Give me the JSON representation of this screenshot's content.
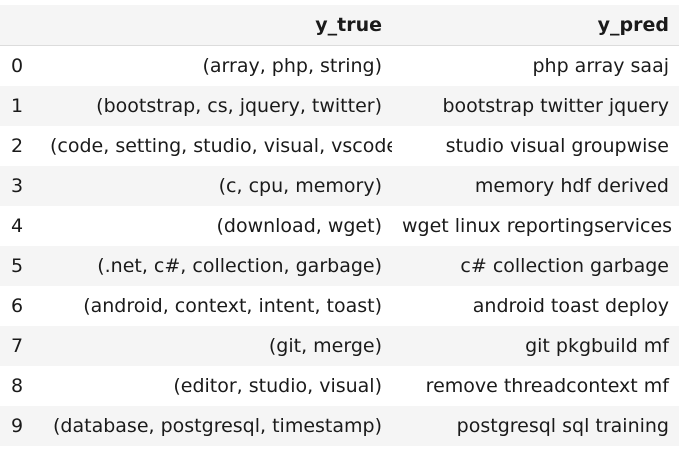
{
  "table": {
    "columns": [
      "",
      "y_true",
      "y_pred"
    ],
    "rows": [
      {
        "index": "0",
        "y_true": "(array, php, string)",
        "y_pred": "php array saaj"
      },
      {
        "index": "1",
        "y_true": "(bootstrap, cs, jquery, twitter)",
        "y_pred": "bootstrap twitter jquery"
      },
      {
        "index": "2",
        "y_true": "(code, setting, studio, visual, vscode)",
        "y_pred": "studio visual groupwise"
      },
      {
        "index": "3",
        "y_true": "(c, cpu, memory)",
        "y_pred": "memory hdf derived"
      },
      {
        "index": "4",
        "y_true": "(download, wget)",
        "y_pred": "wget linux reportingservices"
      },
      {
        "index": "5",
        "y_true": "(.net, c#, collection, garbage)",
        "y_pred": "c# collection garbage"
      },
      {
        "index": "6",
        "y_true": "(android, context, intent, toast)",
        "y_pred": "android toast deploy"
      },
      {
        "index": "7",
        "y_true": "(git, merge)",
        "y_pred": "git pkgbuild mf"
      },
      {
        "index": "8",
        "y_true": "(editor, studio, visual)",
        "y_pred": "remove threadcontext mf"
      },
      {
        "index": "9",
        "y_true": "(database, postgresql, timestamp)",
        "y_pred": "postgresql sql training"
      }
    ]
  }
}
